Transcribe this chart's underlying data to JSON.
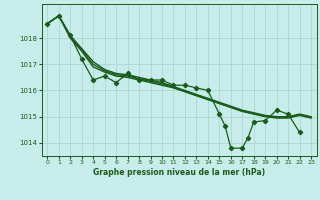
{
  "title": "Graphe pression niveau de la mer (hPa)",
  "background_color": "#c8ece9",
  "grid_color": "#a8d8d4",
  "line_color": "#1a5c1a",
  "text_color": "#1a5c1a",
  "xlim": [
    -0.5,
    23.5
  ],
  "ylim": [
    1013.5,
    1019.3
  ],
  "yticks": [
    1014,
    1015,
    1016,
    1017,
    1018
  ],
  "xtick_labels": [
    "0",
    "1",
    "2",
    "3",
    "4",
    "5",
    "6",
    "7",
    "8",
    "9",
    "10",
    "11",
    "12",
    "13",
    "14",
    "15",
    "16",
    "17",
    "18",
    "19",
    "20",
    "21",
    "22",
    "23"
  ],
  "series1_x": [
    0,
    1,
    2,
    3,
    4,
    5,
    6,
    7,
    8,
    9,
    10,
    11,
    12,
    13,
    14,
    15,
    15.5,
    16,
    17,
    17.5,
    18,
    19,
    20,
    21,
    22
  ],
  "series1": [
    1018.55,
    1018.85,
    1018.1,
    1017.2,
    1016.4,
    1016.55,
    1016.3,
    1016.65,
    1016.4,
    1016.4,
    1016.4,
    1016.2,
    1016.2,
    1016.1,
    1016.0,
    1015.1,
    1014.65,
    1013.8,
    1013.8,
    1014.2,
    1014.8,
    1014.85,
    1015.25,
    1015.1,
    1014.4
  ],
  "trend1": [
    1018.55,
    1018.85,
    1018.0,
    1017.5,
    1016.9,
    1016.7,
    1016.55,
    1016.5,
    1016.4,
    1016.3,
    1016.2,
    1016.1,
    1015.95,
    1015.8,
    1015.65,
    1015.5,
    1015.35,
    1015.2,
    1015.1,
    1015.0,
    1014.95,
    1014.95,
    1015.05,
    1014.95
  ],
  "trend2": [
    1018.55,
    1018.85,
    1018.1,
    1017.6,
    1017.1,
    1016.8,
    1016.65,
    1016.6,
    1016.5,
    1016.4,
    1016.3,
    1016.15,
    1016.0,
    1015.85,
    1015.7,
    1015.55,
    1015.4,
    1015.25,
    1015.15,
    1015.05,
    1015.0,
    1015.0,
    1015.1,
    1015.0
  ],
  "trend3": [
    1018.55,
    1018.85,
    1018.05,
    1017.55,
    1017.0,
    1016.75,
    1016.6,
    1016.55,
    1016.45,
    1016.35,
    1016.25,
    1016.12,
    1015.97,
    1015.82,
    1015.67,
    1015.52,
    1015.37,
    1015.22,
    1015.12,
    1015.02,
    1014.97,
    1014.97,
    1015.07,
    1014.97
  ]
}
